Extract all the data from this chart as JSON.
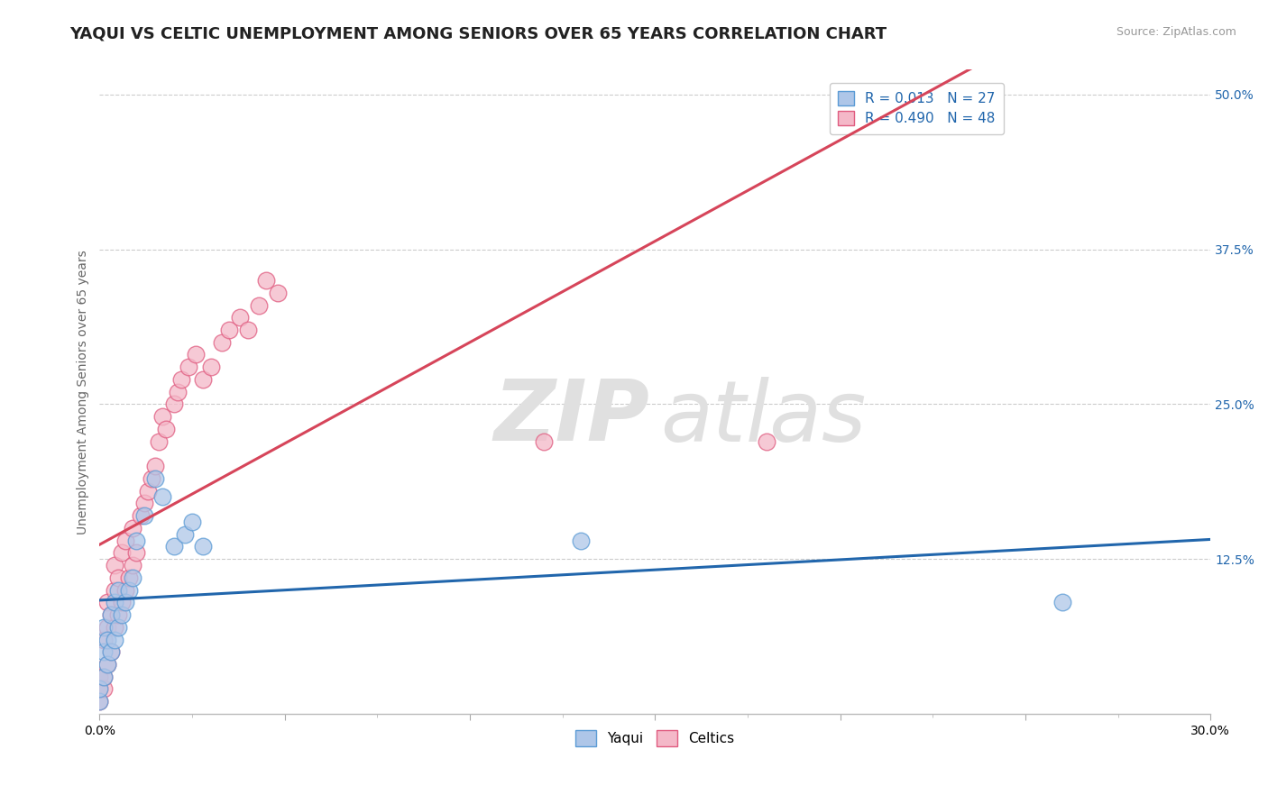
{
  "title": "YAQUI VS CELTIC UNEMPLOYMENT AMONG SENIORS OVER 65 YEARS CORRELATION CHART",
  "source": "Source: ZipAtlas.com",
  "ylabel": "Unemployment Among Seniors over 65 years",
  "xlim": [
    0,
    0.3
  ],
  "ylim": [
    0,
    0.52
  ],
  "xticks": [
    0.0,
    0.05,
    0.1,
    0.15,
    0.2,
    0.25,
    0.3
  ],
  "yticks_right": [
    0.125,
    0.25,
    0.375,
    0.5
  ],
  "yticks_right_labels": [
    "12.5%",
    "25.0%",
    "37.5%",
    "50.0%"
  ],
  "yaqui_x": [
    0.0,
    0.0,
    0.001,
    0.001,
    0.001,
    0.002,
    0.002,
    0.003,
    0.003,
    0.004,
    0.004,
    0.005,
    0.005,
    0.006,
    0.007,
    0.008,
    0.009,
    0.01,
    0.012,
    0.015,
    0.017,
    0.02,
    0.023,
    0.025,
    0.028,
    0.13,
    0.26
  ],
  "yaqui_y": [
    0.01,
    0.02,
    0.03,
    0.05,
    0.07,
    0.04,
    0.06,
    0.05,
    0.08,
    0.06,
    0.09,
    0.07,
    0.1,
    0.08,
    0.09,
    0.1,
    0.11,
    0.14,
    0.16,
    0.19,
    0.175,
    0.135,
    0.145,
    0.155,
    0.135,
    0.14,
    0.09
  ],
  "celtics_x": [
    0.0,
    0.0,
    0.0,
    0.001,
    0.001,
    0.001,
    0.002,
    0.002,
    0.002,
    0.003,
    0.003,
    0.004,
    0.004,
    0.004,
    0.005,
    0.005,
    0.006,
    0.006,
    0.007,
    0.007,
    0.008,
    0.009,
    0.009,
    0.01,
    0.011,
    0.012,
    0.013,
    0.014,
    0.015,
    0.016,
    0.017,
    0.018,
    0.02,
    0.021,
    0.022,
    0.024,
    0.026,
    0.028,
    0.03,
    0.033,
    0.035,
    0.038,
    0.04,
    0.043,
    0.045,
    0.048,
    0.12,
    0.18
  ],
  "celtics_y": [
    0.01,
    0.02,
    0.03,
    0.02,
    0.03,
    0.06,
    0.04,
    0.07,
    0.09,
    0.05,
    0.08,
    0.07,
    0.1,
    0.12,
    0.08,
    0.11,
    0.09,
    0.13,
    0.1,
    0.14,
    0.11,
    0.12,
    0.15,
    0.13,
    0.16,
    0.17,
    0.18,
    0.19,
    0.2,
    0.22,
    0.24,
    0.23,
    0.25,
    0.26,
    0.27,
    0.28,
    0.29,
    0.27,
    0.28,
    0.3,
    0.31,
    0.32,
    0.31,
    0.33,
    0.35,
    0.34,
    0.22,
    0.22
  ],
  "yaqui_color": "#aec6e8",
  "celtics_color": "#f4b8c8",
  "yaqui_edge_color": "#5b9bd5",
  "celtics_edge_color": "#e05c80",
  "yaqui_trend_color": "#2166ac",
  "celtics_trend_color": "#d6455a",
  "yaqui_R": "0.013",
  "yaqui_N": "27",
  "celtics_R": "0.490",
  "celtics_N": "48",
  "watermark_zip": "ZIP",
  "watermark_atlas": "atlas",
  "background_color": "#ffffff",
  "grid_color": "#cccccc",
  "title_fontsize": 13,
  "label_fontsize": 10,
  "legend_text_color": "#2166ac"
}
